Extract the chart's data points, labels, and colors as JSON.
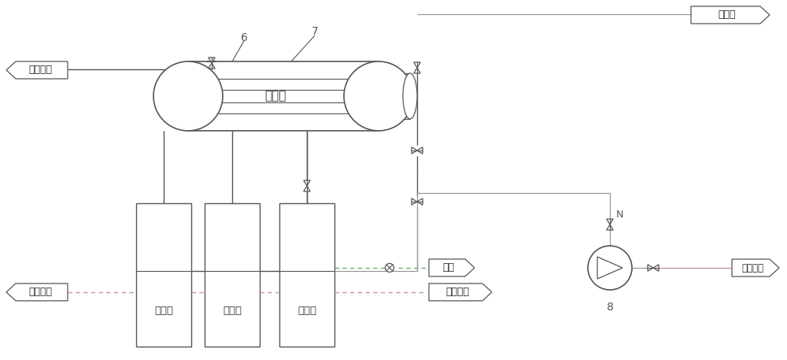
{
  "bg_color": "#ffffff",
  "line_color": "#999999",
  "line_color_dark": "#555555",
  "pink_line": "#c896b4",
  "green_line": "#78a878",
  "figsize": [
    10.0,
    4.57
  ],
  "dpi": 100,
  "labels": {
    "steam_out": "蒸汽出口",
    "steam_ammonia_tower": "蒸氨塔",
    "flue_in": "烟气进口",
    "flue_out": "烟气出口",
    "soft_water": "软水",
    "steam_ammonia_waste": "蒸氨废水",
    "evaporator1": "蒸发器",
    "evaporator2": "蒸发器",
    "economizer": "省煤器",
    "drum": "排流器",
    "label6": "6",
    "label7": "7",
    "label8": "8",
    "label_N": "N"
  }
}
